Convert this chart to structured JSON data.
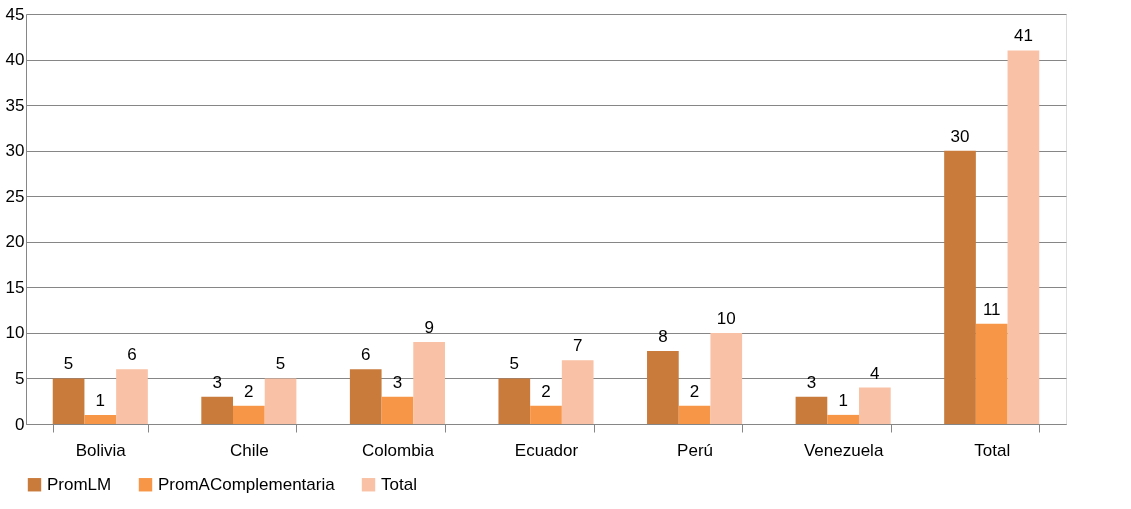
{
  "chart_data": {
    "type": "bar",
    "categories": [
      "Bolivia",
      "Chile",
      "Colombia",
      "Ecuador",
      "Perú",
      "Venezuela",
      "Total"
    ],
    "series": [
      {
        "name": "PromLM",
        "color": "#c97b3c",
        "values": [
          5,
          3,
          6,
          5,
          8,
          3,
          30
        ]
      },
      {
        "name": "PromAComplementaria",
        "color": "#f79646",
        "values": [
          1,
          2,
          3,
          2,
          2,
          1,
          11
        ]
      },
      {
        "name": "Total",
        "color": "#f9c1a5",
        "values": [
          6,
          5,
          9,
          7,
          10,
          4,
          41
        ]
      }
    ],
    "ylim": [
      0,
      45
    ],
    "yticks": [
      0,
      5,
      10,
      15,
      20,
      25,
      30,
      35,
      40,
      45
    ],
    "grid": "y",
    "legend": "bottom",
    "data_labels": true
  }
}
